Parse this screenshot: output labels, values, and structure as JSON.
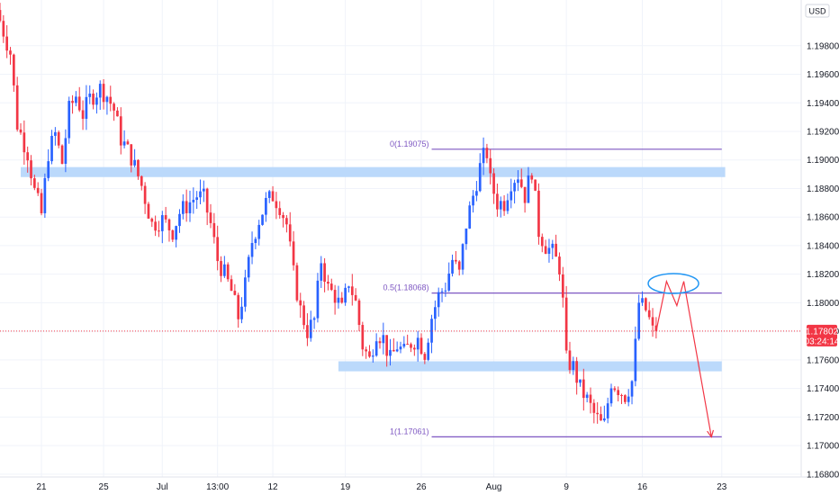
{
  "currency_label": "USD",
  "price_badge": {
    "price": "1.17802",
    "countdown": "03:24:14",
    "color": "#f23645"
  },
  "colors": {
    "up": "#2962ff",
    "down": "#f23645",
    "zone": "#bbd9fb",
    "fib": "#7e57c2",
    "projection": "#f23645",
    "ellipse": "#2196f3"
  },
  "chart_data": {
    "type": "candlestick",
    "title": "",
    "ylim": [
      1.1678,
      1.2012
    ],
    "y_ticks": [
      1.168,
      1.17,
      1.172,
      1.174,
      1.176,
      1.178,
      1.18,
      1.182,
      1.184,
      1.186,
      1.188,
      1.19,
      1.192,
      1.194,
      1.196,
      1.198
    ],
    "y_tick_labels": [
      "1.16800",
      "1.17000",
      "1.17200",
      "1.17400",
      "1.17600",
      "1.17800",
      "1.18000",
      "1.18200",
      "1.18400",
      "1.18600",
      "1.18800",
      "1.19000",
      "1.19200",
      "1.19400",
      "1.19600",
      "1.19800"
    ],
    "x_range": [
      0,
      232
    ],
    "x_ticks": [
      {
        "x": 12,
        "label": "21"
      },
      {
        "x": 30,
        "label": "25"
      },
      {
        "x": 47,
        "label": "Jul"
      },
      {
        "x": 63,
        "label": "13:00"
      },
      {
        "x": 79,
        "label": "12"
      },
      {
        "x": 100,
        "label": "19"
      },
      {
        "x": 122,
        "label": "26"
      },
      {
        "x": 143,
        "label": "Aug"
      },
      {
        "x": 164,
        "label": "9"
      },
      {
        "x": 186,
        "label": "16"
      },
      {
        "x": 209,
        "label": "23"
      }
    ],
    "current_price": 1.17802,
    "price_anchors": [
      [
        0,
        1.2005
      ],
      [
        4,
        1.1975
      ],
      [
        6,
        1.1925
      ],
      [
        9,
        1.1905
      ],
      [
        11,
        1.1878
      ],
      [
        13,
        1.1862
      ],
      [
        15,
        1.1905
      ],
      [
        17,
        1.1918
      ],
      [
        19,
        1.1898
      ],
      [
        21,
        1.1935
      ],
      [
        23,
        1.1945
      ],
      [
        25,
        1.1932
      ],
      [
        27,
        1.1943
      ],
      [
        30,
        1.195
      ],
      [
        32,
        1.1945
      ],
      [
        34,
        1.1935
      ],
      [
        36,
        1.1915
      ],
      [
        39,
        1.1902
      ],
      [
        42,
        1.1882
      ],
      [
        45,
        1.1855
      ],
      [
        48,
        1.1858
      ],
      [
        51,
        1.185
      ],
      [
        53,
        1.1863
      ],
      [
        55,
        1.1868
      ],
      [
        58,
        1.1875
      ],
      [
        60,
        1.1873
      ],
      [
        62,
        1.1855
      ],
      [
        64,
        1.183
      ],
      [
        66,
        1.182
      ],
      [
        68,
        1.1808
      ],
      [
        70,
        1.179
      ],
      [
        72,
        1.1812
      ],
      [
        74,
        1.1843
      ],
      [
        76,
        1.1858
      ],
      [
        78,
        1.187
      ],
      [
        80,
        1.1875
      ],
      [
        82,
        1.1868
      ],
      [
        84,
        1.1855
      ],
      [
        86,
        1.182
      ],
      [
        88,
        1.1795
      ],
      [
        90,
        1.178
      ],
      [
        92,
        1.1788
      ],
      [
        94,
        1.183
      ],
      [
        96,
        1.181
      ],
      [
        98,
        1.1805
      ],
      [
        100,
        1.1795
      ],
      [
        102,
        1.1815
      ],
      [
        104,
        1.18
      ],
      [
        106,
        1.177
      ],
      [
        108,
        1.176
      ],
      [
        110,
        1.178
      ],
      [
        112,
        1.1775
      ],
      [
        114,
        1.176
      ],
      [
        116,
        1.177
      ],
      [
        118,
        1.1765
      ],
      [
        120,
        1.1772
      ],
      [
        122,
        1.1775
      ],
      [
        124,
        1.1765
      ],
      [
        126,
        1.179
      ],
      [
        128,
        1.1805
      ],
      [
        130,
        1.1812
      ],
      [
        132,
        1.183
      ],
      [
        134,
        1.182
      ],
      [
        136,
        1.1855
      ],
      [
        138,
        1.1875
      ],
      [
        140,
        1.1895
      ],
      [
        141,
        1.1902
      ],
      [
        142,
        1.1905
      ],
      [
        143,
        1.1885
      ],
      [
        145,
        1.187
      ],
      [
        147,
        1.187
      ],
      [
        149,
        1.1885
      ],
      [
        151,
        1.189
      ],
      [
        153,
        1.1875
      ],
      [
        155,
        1.1893
      ],
      [
        157,
        1.185
      ],
      [
        159,
        1.184
      ],
      [
        161,
        1.1835
      ],
      [
        163,
        1.1825
      ],
      [
        164,
        1.18
      ],
      [
        165,
        1.176
      ],
      [
        167,
        1.1755
      ],
      [
        169,
        1.174
      ],
      [
        171,
        1.1732
      ],
      [
        173,
        1.1722
      ],
      [
        175,
        1.1715
      ],
      [
        176,
        1.1715
      ],
      [
        178,
        1.1745
      ],
      [
        180,
        1.174
      ],
      [
        182,
        1.1735
      ],
      [
        184,
        1.1745
      ],
      [
        185,
        1.177
      ],
      [
        186,
        1.18
      ],
      [
        188,
        1.1795
      ],
      [
        189,
        1.1788
      ],
      [
        190,
        1.178
      ]
    ],
    "zones": [
      {
        "x_start": 6,
        "x_end": 210,
        "y_low": 1.1888,
        "y_high": 1.1895
      },
      {
        "x_start": 98,
        "x_end": 209,
        "y_low": 1.1752,
        "y_high": 1.1759
      }
    ],
    "fib_levels": [
      {
        "label": "0(1.19075)",
        "value": 1.19075
      },
      {
        "label": "0.5(1.18068)",
        "value": 1.18068
      },
      {
        "label": "1(1.17061)",
        "value": 1.17061
      }
    ],
    "fib_x_range": [
      125,
      209
    ],
    "projection": [
      [
        190,
        1.178
      ],
      [
        193,
        1.1815
      ],
      [
        196,
        1.1798
      ],
      [
        198,
        1.1815
      ],
      [
        206,
        1.1706
      ]
    ]
  }
}
